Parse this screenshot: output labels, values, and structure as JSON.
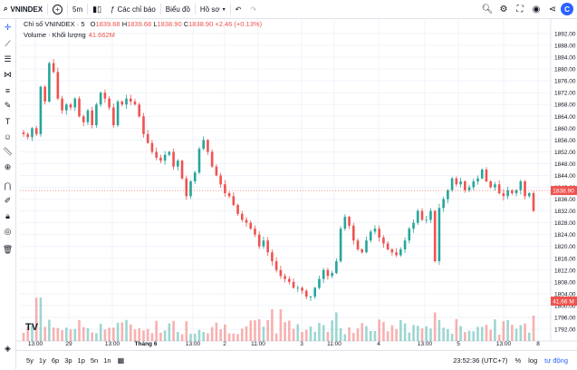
{
  "toolbar": {
    "symbol": "VNINDEX",
    "add": "+",
    "interval": "5m",
    "indicators_label": "Các chỉ báo",
    "chart_type_label": "Biểu đồ",
    "profile_label": "Hồ sơ",
    "logo": "C"
  },
  "legend": {
    "title": "Chỉ số VNINDEX · 5",
    "open_label": "O",
    "open": "1839.68",
    "high_label": "H",
    "high": "1839.68",
    "low_label": "L",
    "low": "1838.90",
    "close_label": "C",
    "close": "1838.90",
    "change": "+2.46 (+0.13%)",
    "volume_title": "Volume · Khối lượng",
    "volume_value": "41.662M"
  },
  "price_axis": {
    "ticks": [
      "1892.00",
      "1888.00",
      "1884.00",
      "1880.00",
      "1876.00",
      "1872.00",
      "1868.00",
      "1864.00",
      "1860.00",
      "1856.00",
      "1852.00",
      "1848.00",
      "1844.00",
      "1840.00",
      "1836.00",
      "1832.00",
      "1828.00",
      "1824.00",
      "1820.00",
      "1816.00",
      "1812.00",
      "1808.00",
      "1804.00",
      "1800.00",
      "1796.00",
      "1792.00"
    ],
    "current_price": "1838.90",
    "current_volume": "41.66 M",
    "up_color": "#26a69a",
    "down_color": "#ef5350"
  },
  "time_axis": {
    "labels": [
      "13:00",
      "29",
      "13:00",
      "Tháng 6",
      "13:00",
      "2",
      "11:00",
      "3",
      "11:00",
      "4",
      "13:00",
      "5",
      "13:00",
      "8"
    ]
  },
  "bottombar": {
    "ranges": [
      "5y",
      "1y",
      "6p",
      "3p",
      "1p",
      "5n",
      "1n"
    ],
    "clock": "23:52:36 (UTC+7)",
    "percent": "%",
    "log": "log",
    "auto": "tự động"
  },
  "watermark": "TV",
  "chart_data": {
    "type": "candlestick",
    "ylim": [
      1790,
      1894
    ],
    "last_price": 1838.9,
    "path": [
      1858,
      1857,
      1860,
      1858,
      1874,
      1869,
      1882,
      1879,
      1870,
      1866,
      1868,
      1867,
      1870,
      1864,
      1862,
      1866,
      1861,
      1868,
      1872,
      1870,
      1867,
      1861,
      1869,
      1868,
      1870,
      1869,
      1868,
      1864,
      1858,
      1855,
      1852,
      1850,
      1849,
      1851,
      1852,
      1847,
      1849,
      1843,
      1837,
      1842,
      1845,
      1853,
      1856,
      1852,
      1847,
      1844,
      1841,
      1838,
      1837,
      1834,
      1831,
      1829,
      1828,
      1826,
      1824,
      1820,
      1822,
      1818,
      1815,
      1812,
      1810,
      1809,
      1808,
      1806,
      1806,
      1805,
      1803,
      1803,
      1806,
      1809,
      1812,
      1810,
      1811,
      1815,
      1826,
      1830,
      1827,
      1822,
      1819,
      1818,
      1822,
      1825,
      1826,
      1823,
      1821,
      1819,
      1818,
      1817,
      1819,
      1822,
      1826,
      1828,
      1832,
      1829,
      1829,
      1832,
      1815,
      1833,
      1836,
      1839,
      1843,
      1841,
      1842,
      1839,
      1840,
      1842,
      1843,
      1846,
      1842,
      1840,
      1841,
      1838,
      1837,
      1839,
      1838,
      1839,
      1842,
      1837,
      1838,
      1832
    ],
    "volume_scale": [
      0.15,
      0.9
    ]
  }
}
